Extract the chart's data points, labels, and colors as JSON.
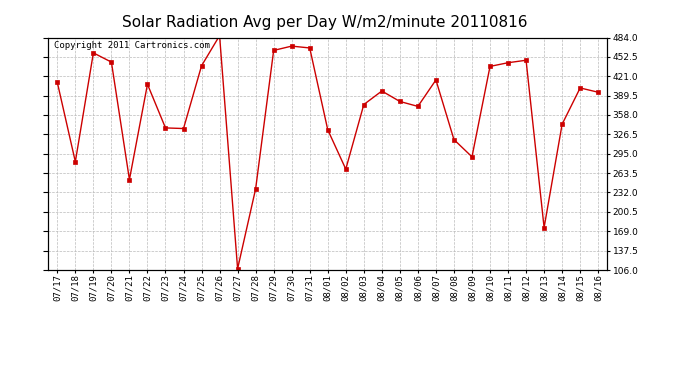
{
  "title": "Solar Radiation Avg per Day W/m2/minute 20110816",
  "copyright": "Copyright 2011 Cartronics.com",
  "dates": [
    "07/17",
    "07/18",
    "07/19",
    "07/20",
    "07/21",
    "07/22",
    "07/23",
    "07/24",
    "07/25",
    "07/26",
    "07/27",
    "07/28",
    "07/29",
    "07/30",
    "07/31",
    "08/01",
    "08/02",
    "08/03",
    "08/04",
    "08/05",
    "08/06",
    "08/07",
    "08/08",
    "08/09",
    "08/10",
    "08/11",
    "08/12",
    "08/13",
    "08/14",
    "08/15",
    "08/16"
  ],
  "values": [
    411,
    282,
    459,
    444,
    253,
    408,
    337,
    336,
    438,
    487,
    108,
    238,
    463,
    470,
    467,
    334,
    270,
    375,
    397,
    380,
    372,
    415,
    318,
    290,
    437,
    443,
    447,
    175,
    343,
    402,
    395
  ],
  "line_color": "#cc0000",
  "marker": "s",
  "marker_size": 2.5,
  "marker_color": "#cc0000",
  "bg_color": "#ffffff",
  "plot_bg_color": "#ffffff",
  "grid_color": "#bbbbbb",
  "ylim": [
    106.0,
    484.0
  ],
  "yticks": [
    106.0,
    137.5,
    169.0,
    200.5,
    232.0,
    263.5,
    295.0,
    326.5,
    358.0,
    389.5,
    421.0,
    452.5,
    484.0
  ],
  "title_fontsize": 11,
  "copyright_fontsize": 6.5,
  "tick_fontsize": 6.5
}
